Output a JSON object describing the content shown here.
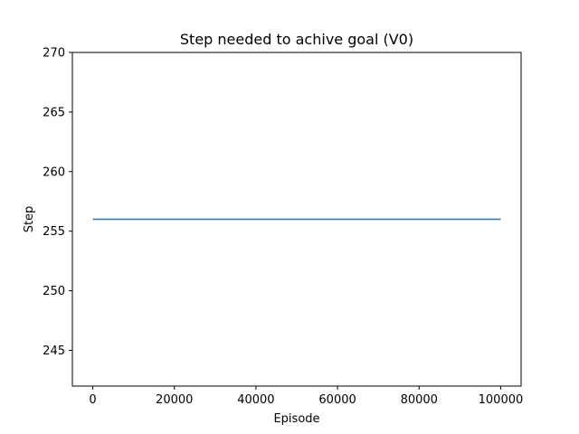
{
  "chart_data": {
    "type": "line",
    "title": "Step needed to achive goal (V0)",
    "xlabel": "Episode",
    "ylabel": "Step",
    "xlim": [
      -5000,
      105000
    ],
    "ylim": [
      242,
      270
    ],
    "xticks": [
      0,
      20000,
      40000,
      60000,
      80000,
      100000
    ],
    "yticks": [
      245,
      250,
      255,
      260,
      265,
      270
    ],
    "grid": false,
    "series": [
      {
        "color": "#1f77b4",
        "x": [
          0,
          100000
        ],
        "y": [
          256,
          256
        ]
      }
    ]
  }
}
